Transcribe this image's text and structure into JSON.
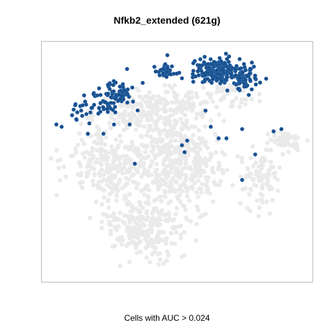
{
  "chart_data": {
    "type": "scatter",
    "title": "Nfkb2_extended (621g)",
    "xlabel": "Cells with AUC > 0.024",
    "ylabel": "",
    "grid": false,
    "legend": "none",
    "threshold_auc": 0.024,
    "gene_set_size": 621,
    "colors": {
      "background_cells": "#d9d9d9",
      "active_cells": "#1a4e8a",
      "frame": "#bdbdbd"
    },
    "series": [
      {
        "role": "background_cells",
        "clusters": [
          {
            "cx": 0.33,
            "cy": 0.29,
            "sx": 0.07,
            "sy": 0.05,
            "n": 140
          },
          {
            "cx": 0.26,
            "cy": 0.52,
            "sx": 0.085,
            "sy": 0.08,
            "n": 280
          },
          {
            "cx": 0.47,
            "cy": 0.48,
            "sx": 0.06,
            "sy": 0.11,
            "n": 260
          },
          {
            "cx": 0.52,
            "cy": 0.28,
            "sx": 0.05,
            "sy": 0.06,
            "n": 90
          },
          {
            "cx": 0.59,
            "cy": 0.53,
            "sx": 0.055,
            "sy": 0.07,
            "n": 130
          },
          {
            "cx": 0.38,
            "cy": 0.78,
            "sx": 0.075,
            "sy": 0.07,
            "n": 240
          },
          {
            "cx": 0.82,
            "cy": 0.58,
            "sx": 0.035,
            "sy": 0.06,
            "n": 90
          },
          {
            "cx": 0.91,
            "cy": 0.41,
            "sx": 0.035,
            "sy": 0.025,
            "n": 50
          },
          {
            "cx": 0.7,
            "cy": 0.2,
            "sx": 0.06,
            "sy": 0.04,
            "n": 60
          }
        ]
      },
      {
        "role": "active_cells",
        "clusters": [
          {
            "cx": 0.66,
            "cy": 0.11,
            "sx": 0.05,
            "sy": 0.025,
            "n": 170
          },
          {
            "cx": 0.75,
            "cy": 0.13,
            "sx": 0.03,
            "sy": 0.03,
            "n": 60
          },
          {
            "cx": 0.46,
            "cy": 0.11,
            "sx": 0.02,
            "sy": 0.015,
            "n": 30
          },
          {
            "cx": 0.24,
            "cy": 0.23,
            "sx": 0.035,
            "sy": 0.035,
            "n": 50
          },
          {
            "cx": 0.29,
            "cy": 0.2,
            "sx": 0.03,
            "sy": 0.03,
            "n": 25
          },
          {
            "cx": 0.13,
            "cy": 0.28,
            "sx": 0.03,
            "sy": 0.03,
            "n": 18
          }
        ],
        "points": [
          [
            0.5,
            0.12
          ],
          [
            0.52,
            0.14
          ],
          [
            0.31,
            0.1
          ],
          [
            0.33,
            0.18
          ],
          [
            0.37,
            0.16
          ],
          [
            0.04,
            0.34
          ],
          [
            0.06,
            0.35
          ],
          [
            0.1,
            0.3
          ],
          [
            0.16,
            0.38
          ],
          [
            0.22,
            0.38
          ],
          [
            0.26,
            0.34
          ],
          [
            0.32,
            0.34
          ],
          [
            0.52,
            0.43
          ],
          [
            0.53,
            0.46
          ],
          [
            0.54,
            0.41
          ],
          [
            0.34,
            0.51
          ],
          [
            0.61,
            0.28
          ],
          [
            0.63,
            0.35
          ],
          [
            0.66,
            0.4
          ],
          [
            0.69,
            0.4
          ],
          [
            0.8,
            0.47
          ],
          [
            0.75,
            0.36
          ],
          [
            0.87,
            0.37
          ],
          [
            0.9,
            0.36
          ],
          [
            0.75,
            0.58
          ]
        ]
      }
    ]
  }
}
